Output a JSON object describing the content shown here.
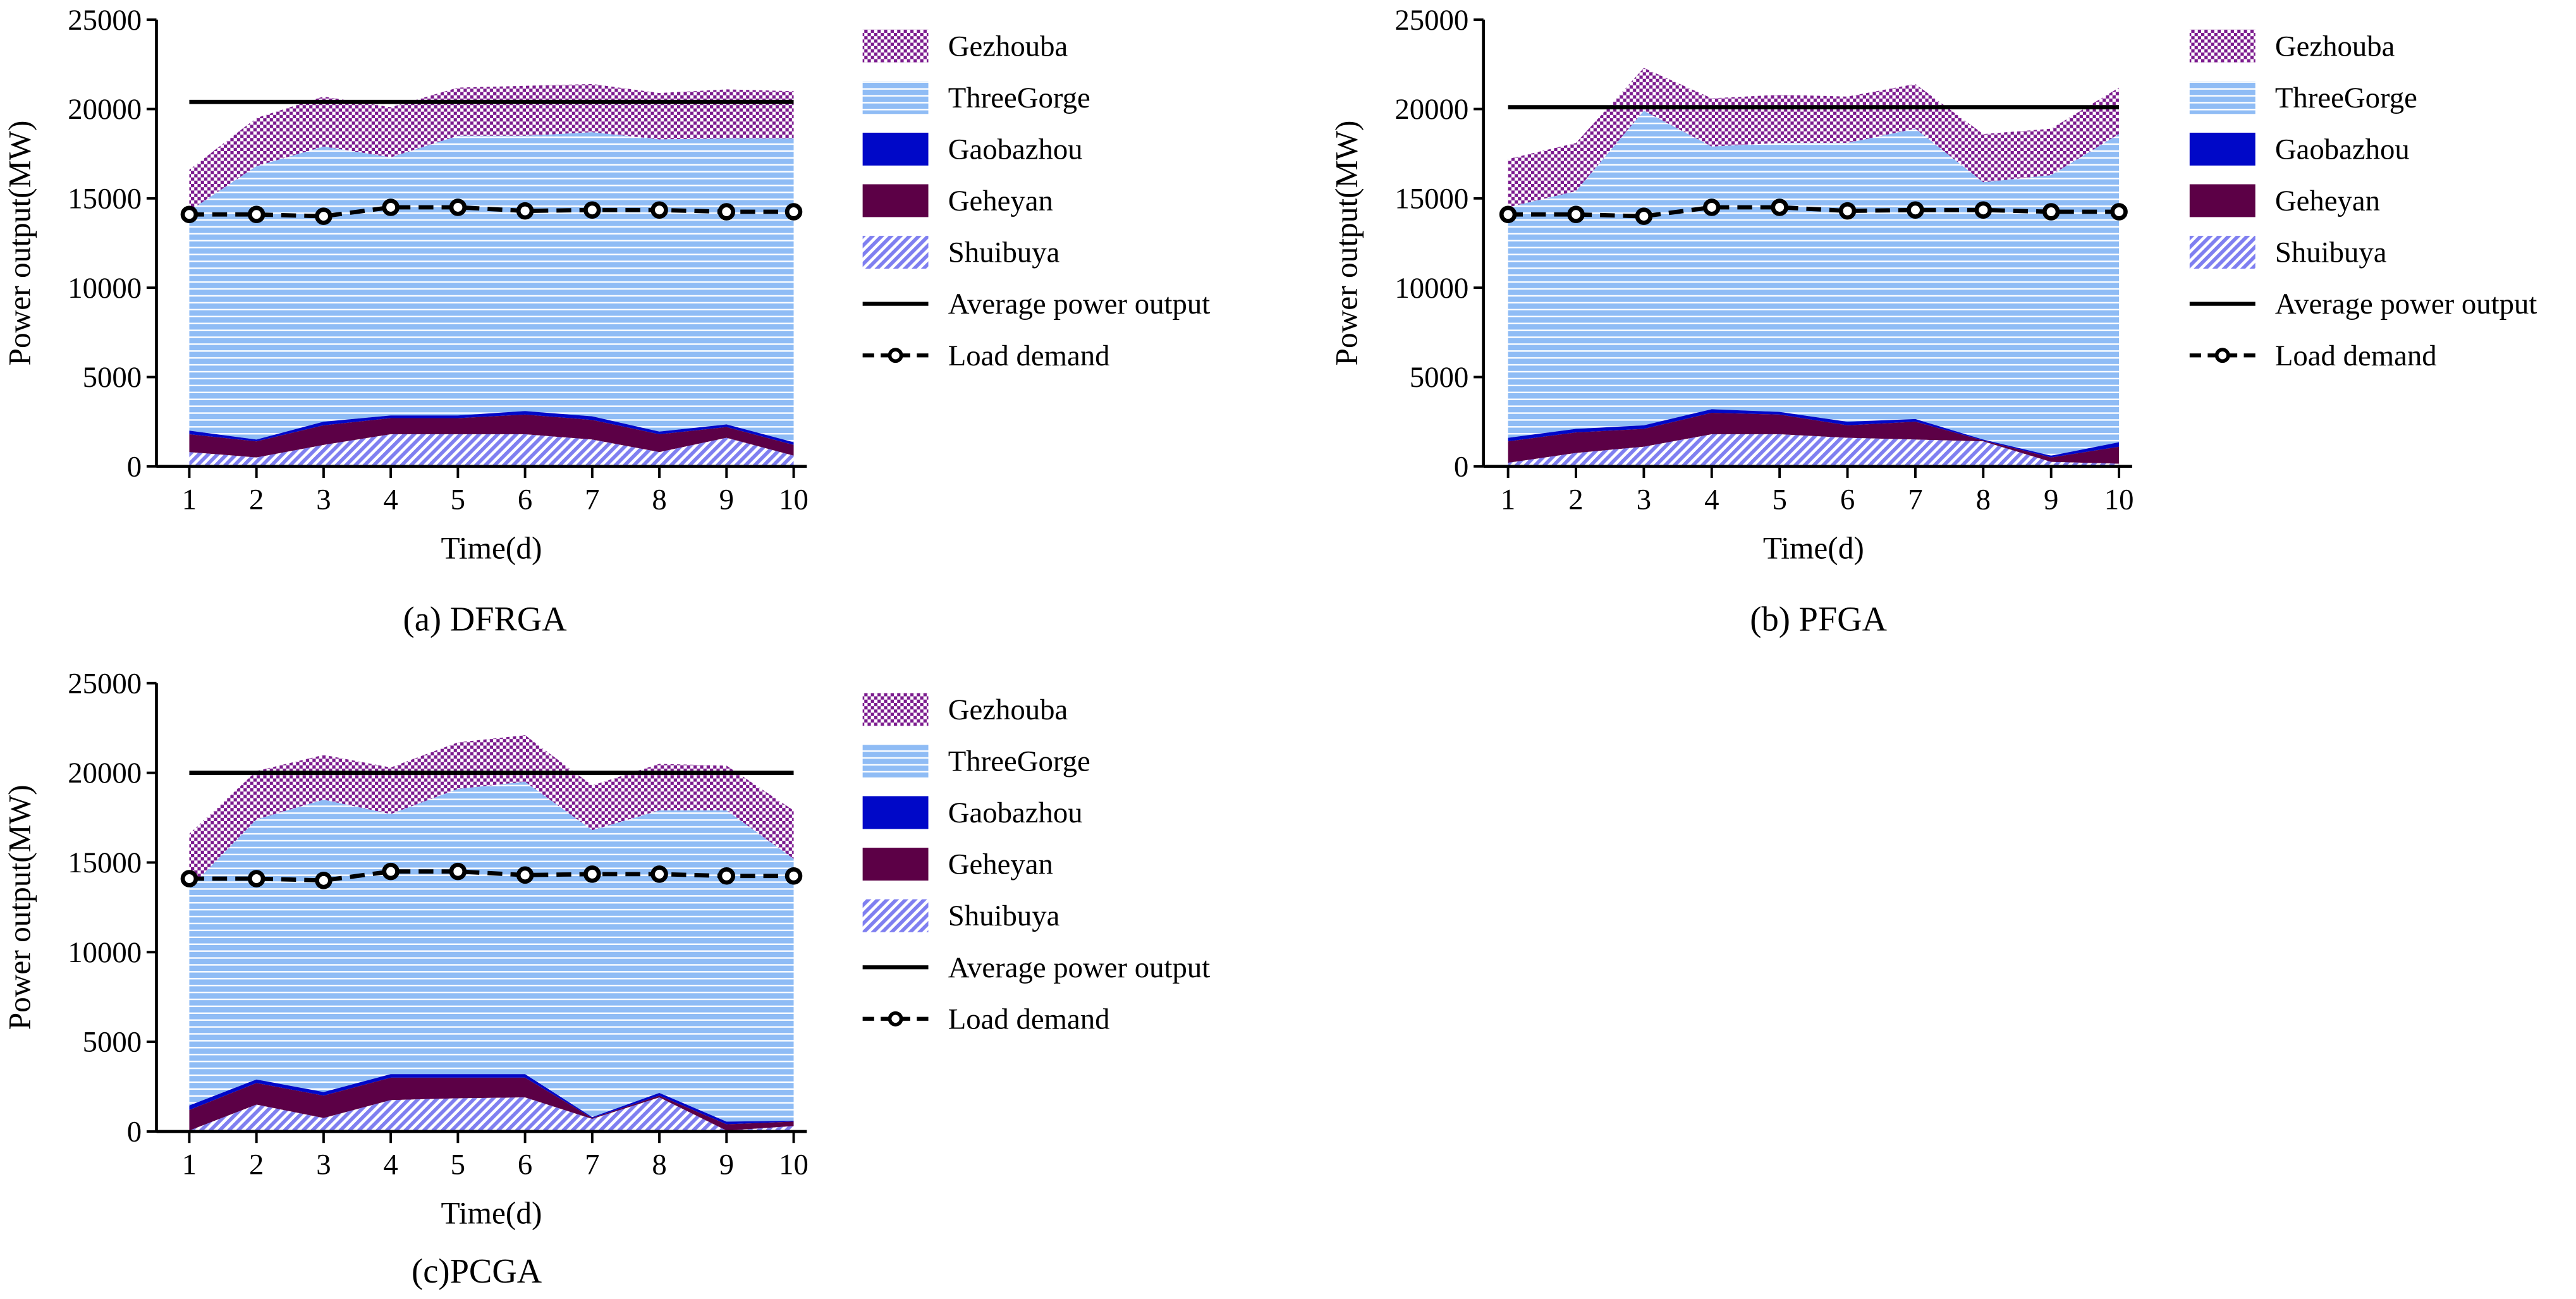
{
  "chart_data": [
    {
      "type": "area",
      "stacked": true,
      "values_are_cumulative_stack_tops": true,
      "caption": "(a) DFRGA",
      "xlabel": "Time(d)",
      "ylabel": "Power output(MW)",
      "x": [
        1,
        2,
        3,
        4,
        5,
        6,
        7,
        8,
        9,
        10
      ],
      "ylim": [
        0,
        25000
      ],
      "yticks": [
        0,
        5000,
        10000,
        15000,
        20000,
        25000
      ],
      "series": [
        {
          "name": "Shuibuya",
          "values": [
            800,
            500,
            1200,
            1800,
            1800,
            1800,
            1500,
            800,
            1600,
            600
          ]
        },
        {
          "name": "Geheyan",
          "values": [
            1800,
            1400,
            2300,
            2700,
            2700,
            2900,
            2600,
            1800,
            2200,
            1200
          ]
        },
        {
          "name": "Gaobazhou",
          "values": [
            2000,
            1500,
            2500,
            2850,
            2850,
            3100,
            2800,
            1950,
            2350,
            1350
          ]
        },
        {
          "name": "ThreeGorge",
          "values": [
            14300,
            16800,
            17900,
            17300,
            18500,
            18500,
            18700,
            18300,
            18350,
            18350
          ]
        },
        {
          "name": "Gezhouba",
          "values": [
            16600,
            19500,
            20700,
            20100,
            21200,
            21300,
            21400,
            20900,
            21100,
            21000
          ]
        }
      ],
      "average_power_output": 20400,
      "load_demand": [
        14100,
        14100,
        14000,
        14500,
        14500,
        14300,
        14350,
        14350,
        14250,
        14250
      ],
      "legend_position": "right"
    },
    {
      "type": "area",
      "stacked": true,
      "values_are_cumulative_stack_tops": true,
      "caption": "(b) PFGA",
      "xlabel": "Time(d)",
      "ylabel": "Power output(MW)",
      "x": [
        1,
        2,
        3,
        4,
        5,
        6,
        7,
        8,
        9,
        10
      ],
      "ylim": [
        0,
        25000
      ],
      "yticks": [
        0,
        5000,
        10000,
        15000,
        20000,
        25000
      ],
      "series": [
        {
          "name": "Shuibuya",
          "values": [
            200,
            750,
            1100,
            1800,
            1800,
            1600,
            1500,
            1400,
            250,
            150
          ]
        },
        {
          "name": "Geheyan",
          "values": [
            1400,
            1900,
            2100,
            3000,
            2900,
            2300,
            2500,
            1450,
            500,
            1100
          ]
        },
        {
          "name": "Gaobazhou",
          "values": [
            1600,
            2100,
            2300,
            3200,
            3050,
            2500,
            2650,
            1500,
            600,
            1350
          ]
        },
        {
          "name": "ThreeGorge",
          "values": [
            14500,
            15400,
            19900,
            17900,
            18100,
            18100,
            18900,
            15900,
            16300,
            18600
          ]
        },
        {
          "name": "Gezhouba",
          "values": [
            17200,
            18100,
            22300,
            20600,
            20800,
            20700,
            21400,
            18600,
            18900,
            21200
          ]
        }
      ],
      "average_power_output": 20100,
      "load_demand": [
        14100,
        14100,
        14000,
        14500,
        14500,
        14300,
        14350,
        14350,
        14250,
        14250
      ],
      "legend_position": "right"
    },
    {
      "type": "area",
      "stacked": true,
      "values_are_cumulative_stack_tops": true,
      "caption": "(c)PCGA",
      "xlabel": "Time(d)",
      "ylabel": "Power output(MW)",
      "x": [
        1,
        2,
        3,
        4,
        5,
        6,
        7,
        8,
        9,
        10
      ],
      "ylim": [
        0,
        25000
      ],
      "yticks": [
        0,
        5000,
        10000,
        15000,
        20000,
        25000
      ],
      "series": [
        {
          "name": "Shuibuya",
          "values": [
            50,
            1500,
            750,
            1750,
            1850,
            1900,
            700,
            1900,
            50,
            300
          ]
        },
        {
          "name": "Geheyan",
          "values": [
            1200,
            2700,
            2000,
            3000,
            3000,
            3000,
            750,
            2000,
            400,
            550
          ]
        },
        {
          "name": "Gaobazhou",
          "values": [
            1450,
            2900,
            2200,
            3200,
            3200,
            3200,
            800,
            2150,
            550,
            600
          ]
        },
        {
          "name": "ThreeGorge",
          "values": [
            13550,
            17400,
            18500,
            17700,
            19100,
            19500,
            16800,
            17900,
            17900,
            15200
          ]
        },
        {
          "name": "Gezhouba",
          "values": [
            16600,
            20100,
            21000,
            20300,
            21700,
            22100,
            19300,
            20500,
            20400,
            17900
          ]
        }
      ],
      "average_power_output": 20000,
      "load_demand": [
        14100,
        14100,
        14000,
        14500,
        14500,
        14300,
        14350,
        14350,
        14250,
        14250
      ],
      "legend_position": "right"
    }
  ],
  "legend": {
    "items": [
      "Gezhouba",
      "ThreeGorge",
      "Gaobazhou",
      "Geheyan",
      "Shuibuya",
      "Average power output",
      "Load demand"
    ]
  },
  "colors": {
    "Gezhouba": "#7b1a8e",
    "ThreeGorge": "#8fbcf5",
    "Gaobazhou": "#0008c8",
    "Geheyan": "#5c0046",
    "Shuibuya": "#7f7ff0",
    "line": "#000000"
  }
}
